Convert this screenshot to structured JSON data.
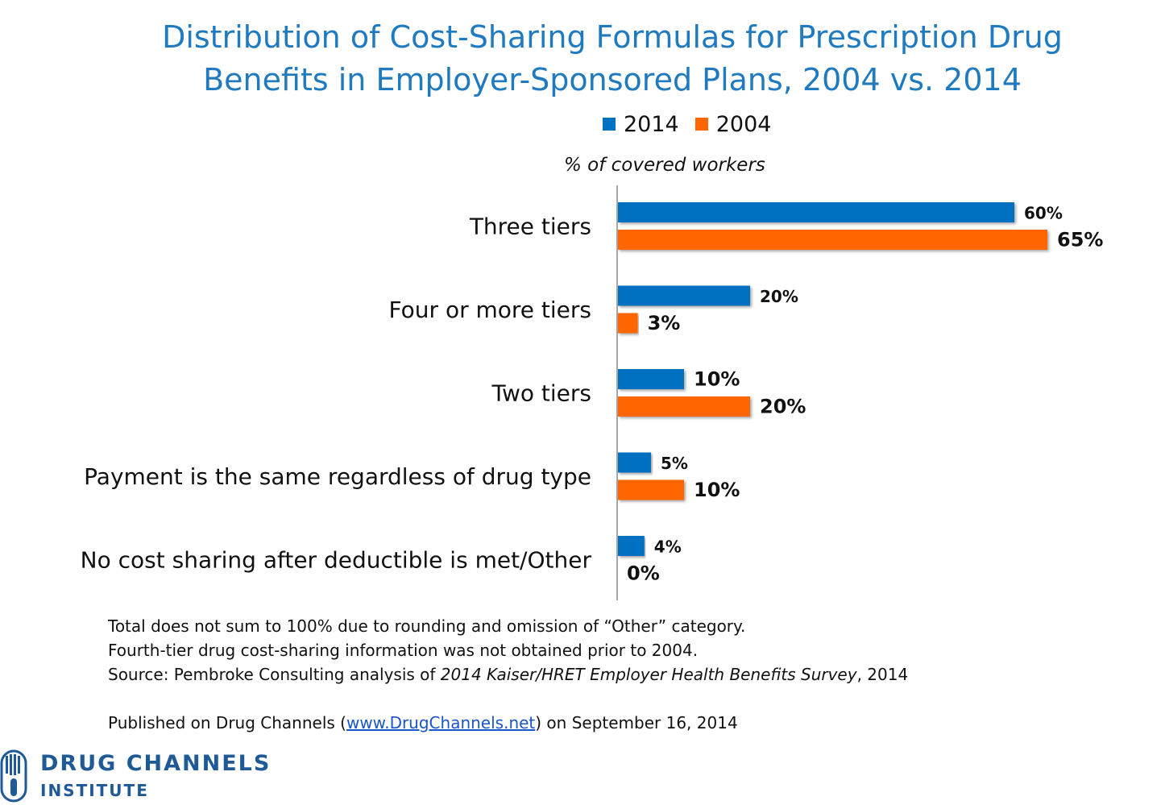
{
  "title_line1": "Distribution of Cost-Sharing Formulas for Prescription Drug",
  "title_line2": "Benefits in Employer-Sponsored Plans, 2004 vs. 2014",
  "legend": [
    {
      "label": "2014",
      "color": "#0070c0"
    },
    {
      "label": "2004",
      "color": "#ff6600"
    }
  ],
  "chart_data": {
    "type": "bar",
    "orientation": "horizontal",
    "axis_caption": "% of covered workers",
    "categories": [
      "Three tiers",
      "Four or more tiers",
      "Two tiers",
      "Payment is the same regardless of drug type",
      "No cost sharing after deductible is met/Other"
    ],
    "series": [
      {
        "name": "2014",
        "color": "#0070c0",
        "values": [
          60,
          20,
          10,
          5,
          4
        ],
        "labels": [
          "60%",
          "20%",
          "10%",
          "5%",
          "4%"
        ]
      },
      {
        "name": "2004",
        "color": "#ff6600",
        "values": [
          65,
          3,
          20,
          10,
          0
        ],
        "labels": [
          "65%",
          "3%",
          "20%",
          "10%",
          "0%"
        ]
      }
    ],
    "xlim": [
      0,
      100
    ],
    "grid": false,
    "legend_position": "top"
  },
  "notes": {
    "line1": "Total does not sum to 100% due to rounding and omission of “Other” category.",
    "line2": "Fourth-tier drug cost-sharing information was not obtained prior to 2004.",
    "source_prefix": "Source: Pembroke Consulting analysis of ",
    "source_title": "2014 Kaiser/HRET Employer Health Benefits Survey",
    "source_suffix": ", 2014",
    "published_prefix": "Published on Drug Channels (",
    "published_link": "www.DrugChannels.net",
    "published_suffix": ") on September 16, 2014"
  },
  "logo": {
    "line1": "DRUG CHANNELS",
    "line2": "INSTITUTE",
    "color": "#1f5a96"
  }
}
